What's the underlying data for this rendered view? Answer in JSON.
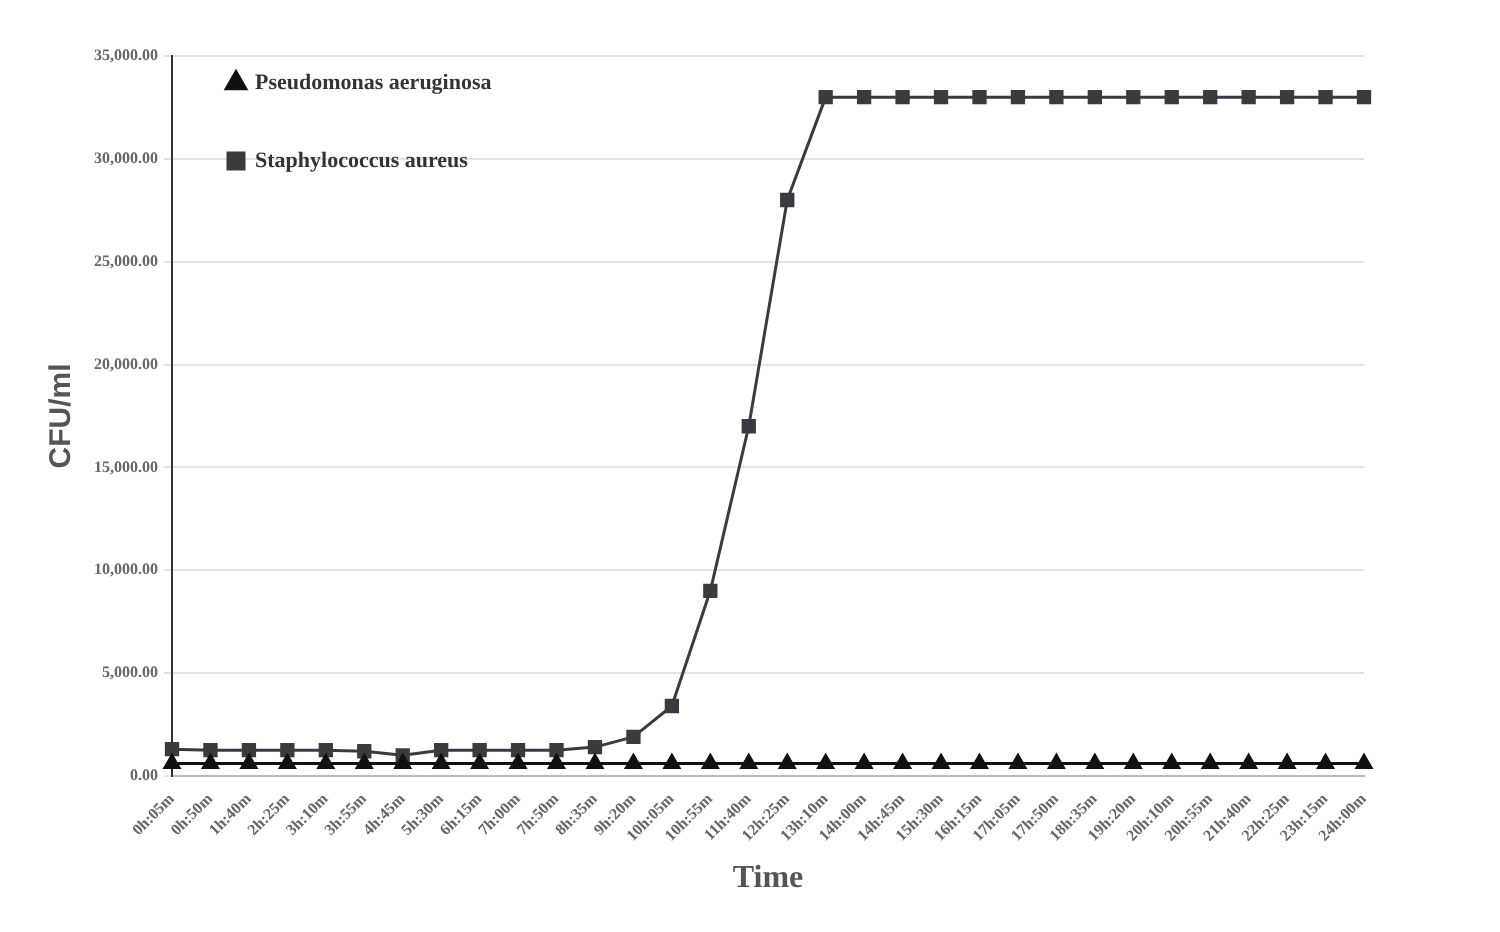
{
  "chart_data": {
    "type": "line",
    "xlabel": "Time",
    "ylabel": "CFU/ml",
    "categories": [
      "0h:05m",
      "0h:50m",
      "1h:40m",
      "2h:25m",
      "3h:10m",
      "3h:55m",
      "4h:45m",
      "5h:30m",
      "6h:15m",
      "7h:00m",
      "7h:50m",
      "8h:35m",
      "9h:20m",
      "10h:05m",
      "10h:55m",
      "11h:40m",
      "12h:25m",
      "13h:10m",
      "14h:00m",
      "14h:45m",
      "15h:30m",
      "16h:15m",
      "17h:05m",
      "17h:50m",
      "18h:35m",
      "19h:20m",
      "20h:10m",
      "20h:55m",
      "21h:40m",
      "22h:25m",
      "23h:15m",
      "24h:00m"
    ],
    "series": [
      {
        "name": "Pseudomonas aeruginosa",
        "color": "#111111",
        "marker": "triangle",
        "values": [
          600,
          600,
          600,
          600,
          600,
          600,
          600,
          600,
          600,
          600,
          600,
          600,
          600,
          600,
          600,
          600,
          600,
          600,
          600,
          600,
          600,
          600,
          600,
          600,
          600,
          600,
          600,
          600,
          600,
          600,
          600,
          600
        ]
      },
      {
        "name": "Staphylococcus aureus",
        "color": "#3a3a40",
        "marker": "square",
        "values": [
          1300,
          1250,
          1250,
          1250,
          1250,
          1200,
          1000,
          1250,
          1250,
          1250,
          1250,
          1400,
          1900,
          3400,
          9000,
          17000,
          28000,
          33000,
          33000,
          33000,
          33000,
          33000,
          33000,
          33000,
          33000,
          33000,
          33000,
          33000,
          33000,
          33000,
          33000,
          33000
        ]
      }
    ],
    "ylim": [
      0,
      35000
    ],
    "yticks": [
      {
        "value": 0,
        "label": "0.00"
      },
      {
        "value": 5000,
        "label": "5,000.00"
      },
      {
        "value": 10000,
        "label": "10,000.00"
      },
      {
        "value": 15000,
        "label": "15,000.00"
      },
      {
        "value": 20000,
        "label": "20,000.00"
      },
      {
        "value": 25000,
        "label": "25,000.00"
      },
      {
        "value": 30000,
        "label": "30,000.00"
      },
      {
        "value": 35000,
        "label": "35,000.00"
      }
    ],
    "grid": "y",
    "legend": "top left",
    "line_style": "solid"
  }
}
